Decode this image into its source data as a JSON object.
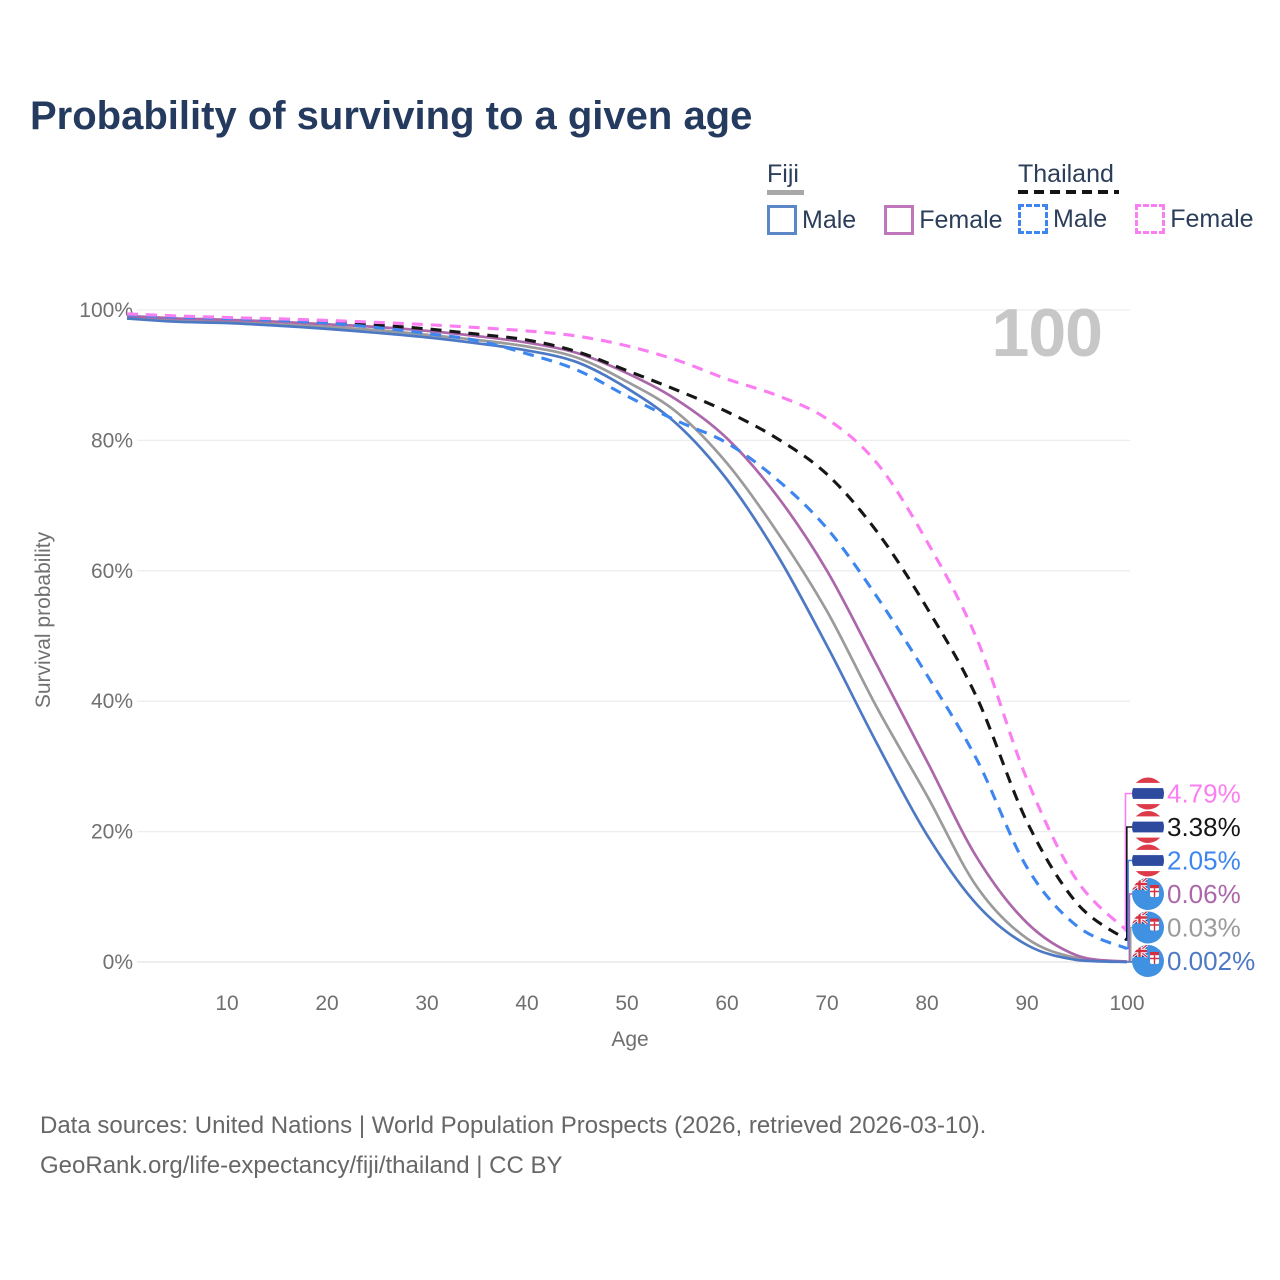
{
  "title": "Probability of surviving to a given age",
  "age_counter": "100",
  "legend": {
    "fiji": {
      "label": "Fiji",
      "male": "Male",
      "female": "Female"
    },
    "thailand": {
      "label": "Thailand",
      "male": "Male",
      "female": "Female"
    }
  },
  "axes": {
    "y_title": "Survival probability",
    "x_title": "Age"
  },
  "footer": {
    "line1": "Data sources: United Nations | World Population Prospects (2026, retrieved 2026-03-10).",
    "line2": "GeoRank.org/life-expectancy/fiji/thailand | CC BY"
  },
  "colors": {
    "fiji_male": "#4d79c4",
    "fiji_female": "#ac67aa",
    "fiji_all": "#9b9b9b",
    "thailand_male": "#3d86f0",
    "thailand_female": "#fb7df2",
    "thailand_all": "#161616",
    "grid": "#ededed",
    "axis_text": "#707070",
    "navy_text": "#2c3e5a",
    "watermark": "#c7c7c7"
  },
  "chart_data": {
    "type": "line",
    "title": "Probability of surviving to a given age",
    "xlabel": "Age",
    "ylabel": "Survival probability",
    "xlim": [
      0,
      100
    ],
    "ylim": [
      0,
      100
    ],
    "grid": "horizontal-only",
    "x_ticks": [
      10,
      20,
      30,
      40,
      50,
      60,
      70,
      80,
      90,
      100
    ],
    "y_tick_labels": [
      "100%",
      "80%",
      "60%",
      "40%",
      "20%",
      "0%"
    ],
    "y_tick_values": [
      100,
      80,
      60,
      40,
      20,
      0
    ],
    "ages": [
      0,
      5,
      10,
      15,
      20,
      25,
      30,
      35,
      40,
      45,
      50,
      55,
      60,
      65,
      70,
      75,
      80,
      85,
      90,
      95,
      100
    ],
    "series": [
      {
        "id": "fiji-all",
        "country": "fiji",
        "name": "Fiji",
        "sex": "all",
        "style": "solid",
        "color": "#9b9b9b",
        "end_label": "0.03%",
        "values": [
          98.9,
          98.4,
          98.2,
          97.8,
          97.4,
          96.9,
          96.2,
          95.4,
          94.4,
          92.7,
          89.0,
          84.3,
          76.5,
          66.0,
          53.8,
          39.0,
          25.5,
          11.5,
          3.6,
          0.6,
          0.03
        ]
      },
      {
        "id": "fiji-female",
        "country": "fiji",
        "name": "Fiji",
        "sex": "female",
        "style": "solid",
        "color": "#ac67aa",
        "end_label": "0.06%",
        "values": [
          99.1,
          98.7,
          98.5,
          98.2,
          97.8,
          97.4,
          96.8,
          96.0,
          95.0,
          93.4,
          90.3,
          86.2,
          80.3,
          71.5,
          60.0,
          45.5,
          30.8,
          16.0,
          6.0,
          1.0,
          0.06
        ]
      },
      {
        "id": "fiji-male",
        "country": "fiji",
        "name": "Fiji",
        "sex": "male",
        "style": "solid",
        "color": "#4d79c4",
        "end_label": "0.002%",
        "values": [
          98.7,
          98.2,
          98.0,
          97.6,
          97.1,
          96.5,
          95.8,
          94.9,
          93.8,
          92.0,
          88.0,
          82.5,
          74.0,
          62.5,
          48.5,
          33.5,
          19.5,
          8.8,
          2.6,
          0.3,
          0.002
        ]
      },
      {
        "id": "thailand-all",
        "country": "thailand",
        "name": "Thailand",
        "sex": "all",
        "style": "dashed",
        "color": "#161616",
        "end_label": "3.38%",
        "values": [
          99.35,
          99.0,
          98.8,
          98.5,
          98.2,
          97.7,
          97.1,
          96.3,
          95.4,
          93.6,
          90.7,
          87.7,
          84.4,
          80.3,
          74.8,
          66.0,
          54.3,
          40.5,
          21.5,
          9.0,
          3.38
        ]
      },
      {
        "id": "thailand-male",
        "country": "thailand",
        "name": "Thailand",
        "sex": "male",
        "style": "dashed",
        "color": "#3d86f0",
        "end_label": "2.05%",
        "values": [
          99.3,
          98.9,
          98.7,
          98.4,
          98.0,
          97.3,
          96.4,
          95.3,
          93.3,
          90.8,
          86.8,
          83.0,
          79.6,
          74.0,
          66.5,
          56.0,
          44.0,
          31.0,
          14.5,
          5.5,
          2.05
        ]
      },
      {
        "id": "thailand-female",
        "country": "thailand",
        "name": "Thailand",
        "sex": "female",
        "style": "dashed",
        "color": "#fb7df2",
        "end_label": "4.79%",
        "values": [
          99.4,
          99.1,
          98.85,
          98.65,
          98.4,
          98.1,
          97.75,
          97.3,
          96.8,
          96.0,
          94.5,
          92.3,
          89.4,
          86.9,
          83.3,
          76.5,
          64.5,
          49.5,
          28.0,
          12.5,
          4.79
        ]
      }
    ],
    "end_label_order": [
      "thailand-female",
      "thailand-all",
      "thailand-male",
      "fiji-female",
      "fiji-all",
      "fiji-male"
    ],
    "legend_position": "top-right"
  }
}
